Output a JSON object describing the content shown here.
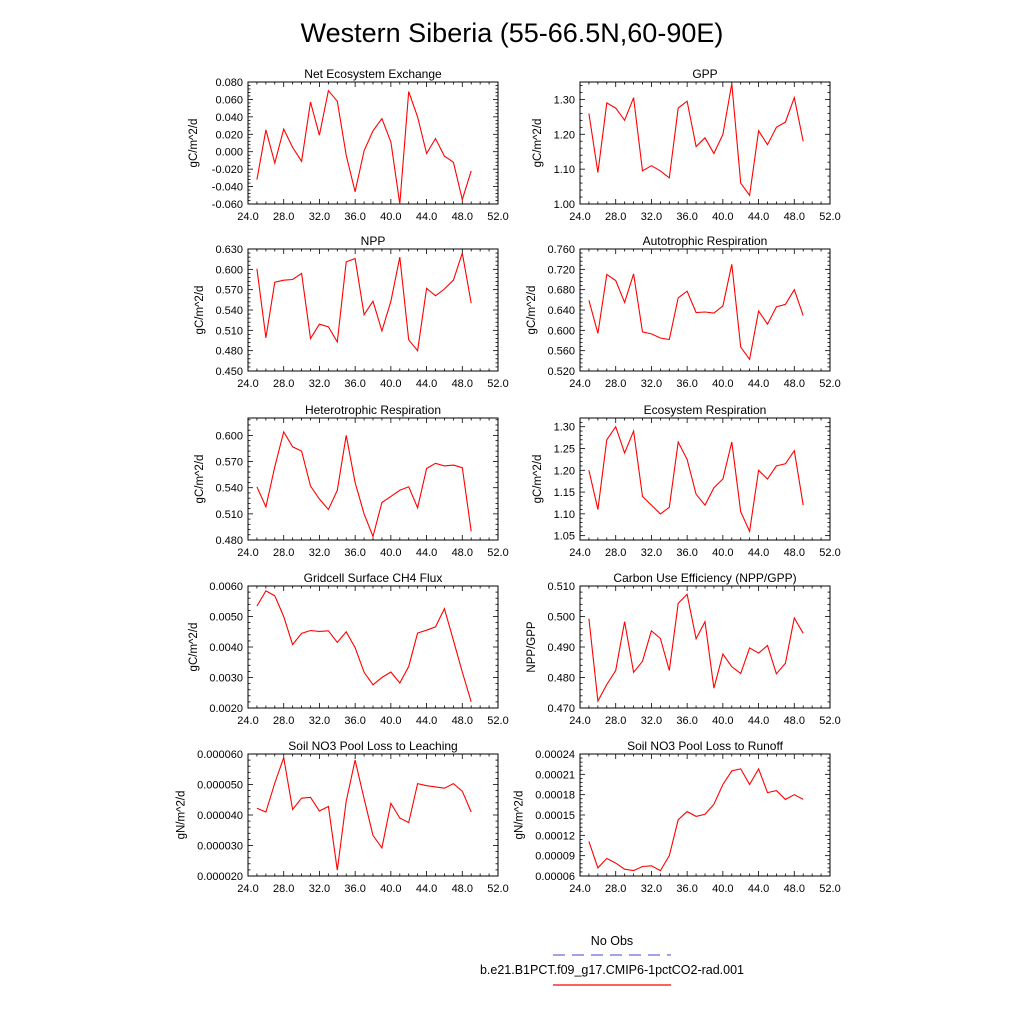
{
  "figure_title": "Western Siberia (55-66.5N,60-90E)",
  "colors": {
    "model_line": "#ff0000",
    "obs_line": "#6b6bd6",
    "axis": "#000000"
  },
  "legend": {
    "obs_label": "No Obs",
    "model_label": "b.e21.B1PCT.f09_g17.CMIP6-1pctCO2-rad.001"
  },
  "chart_data": [
    {
      "type": "line",
      "title": "Net Ecosystem Exchange",
      "ylabel": "gC/m^2/d",
      "xlim": [
        24,
        52
      ],
      "ylim": [
        -0.06,
        0.08
      ],
      "xticks": [
        "24.0",
        "28.0",
        "32.0",
        "36.0",
        "40.0",
        "44.0",
        "48.0",
        "52.0"
      ],
      "yticks": [
        "-0.060",
        "-0.040",
        "-0.020",
        "0.000",
        "0.020",
        "0.040",
        "0.060",
        "0.080"
      ],
      "x": [
        25,
        26,
        27,
        28,
        29,
        30,
        31,
        32,
        33,
        34,
        35,
        36,
        37,
        38,
        39,
        40,
        41,
        42,
        43,
        44,
        45,
        46,
        47,
        48,
        49
      ],
      "series": [
        {
          "values": [
            -0.032,
            0.025,
            -0.013,
            0.026,
            0.005,
            -0.011,
            0.057,
            0.019,
            0.07,
            0.058,
            -0.004,
            -0.046,
            0.001,
            0.024,
            0.038,
            0.011,
            -0.06,
            0.069,
            0.04,
            -0.002,
            0.015,
            -0.005,
            -0.012,
            -0.055,
            -0.022
          ]
        }
      ]
    },
    {
      "type": "line",
      "title": "GPP",
      "ylabel": "gC/m^2/d",
      "xlim": [
        24,
        52
      ],
      "ylim": [
        1.0,
        1.35
      ],
      "xticks": [
        "24.0",
        "28.0",
        "32.0",
        "36.0",
        "40.0",
        "44.0",
        "48.0",
        "52.0"
      ],
      "yticks": [
        "1.00",
        "1.10",
        "1.20",
        "1.30"
      ],
      "x": [
        25,
        26,
        27,
        28,
        29,
        30,
        31,
        32,
        33,
        34,
        35,
        36,
        37,
        38,
        39,
        40,
        41,
        42,
        43,
        44,
        45,
        46,
        47,
        48,
        49
      ],
      "series": [
        {
          "values": [
            1.26,
            1.09,
            1.29,
            1.275,
            1.24,
            1.305,
            1.095,
            1.11,
            1.095,
            1.075,
            1.275,
            1.295,
            1.165,
            1.19,
            1.145,
            1.2,
            1.345,
            1.06,
            1.025,
            1.21,
            1.17,
            1.22,
            1.235,
            1.305,
            1.18
          ]
        }
      ]
    },
    {
      "type": "line",
      "title": "NPP",
      "ylabel": "gC/m^2/d",
      "xlim": [
        24,
        52
      ],
      "ylim": [
        0.45,
        0.63
      ],
      "xticks": [
        "24.0",
        "28.0",
        "32.0",
        "36.0",
        "40.0",
        "44.0",
        "48.0",
        "52.0"
      ],
      "yticks": [
        "0.450",
        "0.480",
        "0.510",
        "0.540",
        "0.570",
        "0.600",
        "0.630"
      ],
      "x": [
        25,
        26,
        27,
        28,
        29,
        30,
        31,
        32,
        33,
        34,
        35,
        36,
        37,
        38,
        39,
        40,
        41,
        42,
        43,
        44,
        45,
        46,
        47,
        48,
        49
      ],
      "series": [
        {
          "values": [
            0.601,
            0.499,
            0.581,
            0.584,
            0.585,
            0.594,
            0.498,
            0.519,
            0.515,
            0.493,
            0.611,
            0.616,
            0.533,
            0.553,
            0.509,
            0.553,
            0.618,
            0.496,
            0.48,
            0.572,
            0.561,
            0.571,
            0.584,
            0.624,
            0.55
          ]
        }
      ]
    },
    {
      "type": "line",
      "title": "Autotrophic Respiration",
      "ylabel": "gC/m^2/d",
      "xlim": [
        24,
        52
      ],
      "ylim": [
        0.52,
        0.76
      ],
      "xticks": [
        "24.0",
        "28.0",
        "32.0",
        "36.0",
        "40.0",
        "44.0",
        "48.0",
        "52.0"
      ],
      "yticks": [
        "0.520",
        "0.560",
        "0.600",
        "0.640",
        "0.680",
        "0.720",
        "0.760"
      ],
      "x": [
        25,
        26,
        27,
        28,
        29,
        30,
        31,
        32,
        33,
        34,
        35,
        36,
        37,
        38,
        39,
        40,
        41,
        42,
        43,
        44,
        45,
        46,
        47,
        48,
        49
      ],
      "series": [
        {
          "values": [
            0.659,
            0.594,
            0.71,
            0.698,
            0.655,
            0.711,
            0.597,
            0.593,
            0.585,
            0.582,
            0.664,
            0.677,
            0.635,
            0.636,
            0.634,
            0.648,
            0.73,
            0.567,
            0.543,
            0.638,
            0.612,
            0.646,
            0.651,
            0.68,
            0.629
          ]
        }
      ]
    },
    {
      "type": "line",
      "title": "Heterotrophic Respiration",
      "ylabel": "gC/m^2/d",
      "xlim": [
        24,
        52
      ],
      "ylim": [
        0.48,
        0.62
      ],
      "xticks": [
        "24.0",
        "28.0",
        "32.0",
        "36.0",
        "40.0",
        "44.0",
        "48.0",
        "52.0"
      ],
      "yticks": [
        "0.480",
        "0.510",
        "0.540",
        "0.570",
        "0.600"
      ],
      "x": [
        25,
        26,
        27,
        28,
        29,
        30,
        31,
        32,
        33,
        34,
        35,
        36,
        37,
        38,
        39,
        40,
        41,
        42,
        43,
        44,
        45,
        46,
        47,
        48,
        49
      ],
      "series": [
        {
          "values": [
            0.541,
            0.518,
            0.564,
            0.604,
            0.587,
            0.582,
            0.542,
            0.527,
            0.515,
            0.537,
            0.6,
            0.546,
            0.51,
            0.484,
            0.523,
            0.53,
            0.537,
            0.541,
            0.517,
            0.562,
            0.568,
            0.565,
            0.566,
            0.563,
            0.49
          ]
        }
      ]
    },
    {
      "type": "line",
      "title": "Ecosystem Respiration",
      "ylabel": "gC/m^2/d",
      "xlim": [
        24,
        52
      ],
      "ylim": [
        1.04,
        1.32
      ],
      "xticks": [
        "24.0",
        "28.0",
        "32.0",
        "36.0",
        "40.0",
        "44.0",
        "48.0",
        "52.0"
      ],
      "yticks": [
        "1.05",
        "1.10",
        "1.15",
        "1.20",
        "1.25",
        "1.30"
      ],
      "x": [
        25,
        26,
        27,
        28,
        29,
        30,
        31,
        32,
        33,
        34,
        35,
        36,
        37,
        38,
        39,
        40,
        41,
        42,
        43,
        44,
        45,
        46,
        47,
        48,
        49
      ],
      "series": [
        {
          "values": [
            1.2,
            1.11,
            1.27,
            1.3,
            1.24,
            1.29,
            1.14,
            1.12,
            1.1,
            1.115,
            1.265,
            1.225,
            1.145,
            1.12,
            1.16,
            1.18,
            1.265,
            1.105,
            1.06,
            1.2,
            1.18,
            1.21,
            1.215,
            1.245,
            1.12
          ]
        }
      ]
    },
    {
      "type": "line",
      "title": "Gridcell Surface CH4 Flux",
      "ylabel": "gC/m^2/d",
      "xlim": [
        24,
        52
      ],
      "ylim": [
        0.002,
        0.006
      ],
      "xticks": [
        "24.0",
        "28.0",
        "32.0",
        "36.0",
        "40.0",
        "44.0",
        "48.0",
        "52.0"
      ],
      "yticks": [
        "0.0020",
        "0.0030",
        "0.0040",
        "0.0050",
        "0.0060"
      ],
      "x": [
        25,
        26,
        27,
        28,
        29,
        30,
        31,
        32,
        33,
        34,
        35,
        36,
        37,
        38,
        39,
        40,
        41,
        42,
        43,
        44,
        45,
        46,
        47,
        48,
        49
      ],
      "series": [
        {
          "values": [
            0.00534,
            0.00584,
            0.00568,
            0.005,
            0.00408,
            0.00445,
            0.00454,
            0.00451,
            0.00453,
            0.00415,
            0.0045,
            0.00398,
            0.00317,
            0.00276,
            0.003,
            0.00318,
            0.00282,
            0.00336,
            0.00446,
            0.00455,
            0.00466,
            0.00526,
            0.00422,
            0.00318,
            0.0022
          ]
        }
      ]
    },
    {
      "type": "line",
      "title": "Carbon Use Efficiency (NPP/GPP)",
      "ylabel": "NPP/GPP",
      "xlim": [
        24,
        52
      ],
      "ylim": [
        0.47,
        0.51
      ],
      "xticks": [
        "24.0",
        "28.0",
        "32.0",
        "36.0",
        "40.0",
        "44.0",
        "48.0",
        "52.0"
      ],
      "yticks": [
        "0.470",
        "0.480",
        "0.490",
        "0.500",
        "0.510"
      ],
      "x": [
        25,
        26,
        27,
        28,
        29,
        30,
        31,
        32,
        33,
        34,
        35,
        36,
        37,
        38,
        39,
        40,
        41,
        42,
        43,
        44,
        45,
        46,
        47,
        48,
        49
      ],
      "series": [
        {
          "values": [
            0.4993,
            0.4723,
            0.4777,
            0.4823,
            0.4983,
            0.4817,
            0.4853,
            0.4953,
            0.4928,
            0.4823,
            0.5043,
            0.5073,
            0.4927,
            0.4983,
            0.4765,
            0.4877,
            0.4835,
            0.4813,
            0.4897,
            0.488,
            0.4905,
            0.4812,
            0.4847,
            0.4995,
            0.4945
          ]
        }
      ]
    },
    {
      "type": "line",
      "title": "Soil NO3 Pool Loss to Leaching",
      "ylabel": "gN/m^2/d",
      "xlim": [
        24,
        52
      ],
      "ylim": [
        2e-05,
        6e-05
      ],
      "xticks": [
        "24.0",
        "28.0",
        "32.0",
        "36.0",
        "40.0",
        "44.0",
        "48.0",
        "52.0"
      ],
      "yticks": [
        "0.000020",
        "0.000030",
        "0.000040",
        "0.000050",
        "0.000060"
      ],
      "x": [
        25,
        26,
        27,
        28,
        29,
        30,
        31,
        32,
        33,
        34,
        35,
        36,
        37,
        38,
        39,
        40,
        41,
        42,
        43,
        44,
        45,
        46,
        47,
        48,
        49
      ],
      "series": [
        {
          "values": [
            4.22e-05,
            4.1e-05,
            5.05e-05,
            5.88e-05,
            4.18e-05,
            4.55e-05,
            4.58e-05,
            4.13e-05,
            4.28e-05,
            2.19e-05,
            4.45e-05,
            5.8e-05,
            4.53e-05,
            3.33e-05,
            2.92e-05,
            4.38e-05,
            3.9e-05,
            3.75e-05,
            5.03e-05,
            4.96e-05,
            4.92e-05,
            4.88e-05,
            5.03e-05,
            4.78e-05,
            4.1e-05
          ]
        }
      ]
    },
    {
      "type": "line",
      "title": "Soil NO3 Pool Loss to Runoff",
      "ylabel": "gN/m^2/d",
      "xlim": [
        24,
        52
      ],
      "ylim": [
        6e-05,
        0.00024
      ],
      "xticks": [
        "24.0",
        "28.0",
        "32.0",
        "36.0",
        "40.0",
        "44.0",
        "48.0",
        "52.0"
      ],
      "yticks": [
        "0.00006",
        "0.00009",
        "0.00012",
        "0.00015",
        "0.00018",
        "0.00021",
        "0.00024"
      ],
      "x": [
        25,
        26,
        27,
        28,
        29,
        30,
        31,
        32,
        33,
        34,
        35,
        36,
        37,
        38,
        39,
        40,
        41,
        42,
        43,
        44,
        45,
        46,
        47,
        48,
        49
      ],
      "series": [
        {
          "values": [
            0.000111,
            7.2e-05,
            8.6e-05,
            7.9e-05,
            7e-05,
            6.8e-05,
            7.4e-05,
            7.5e-05,
            6.8e-05,
            9e-05,
            0.000143,
            0.000155,
            0.000148,
            0.000151,
            0.000166,
            0.000195,
            0.000215,
            0.000218,
            0.000195,
            0.000218,
            0.000183,
            0.000186,
            0.000173,
            0.00018,
            0.000173
          ]
        }
      ]
    }
  ]
}
